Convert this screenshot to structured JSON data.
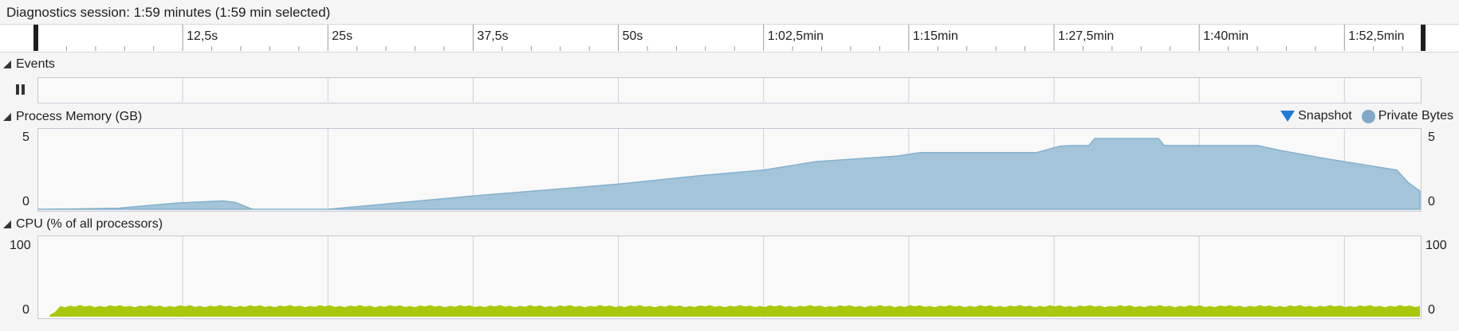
{
  "header": {
    "session_label": "Diagnostics session: 1:59 minutes (1:59 min selected)"
  },
  "ruler": {
    "ticks": [
      "12,5s",
      "25s",
      "37,5s",
      "50s",
      "1:02,5min",
      "1:15min",
      "1:27,5min",
      "1:40min",
      "1:52,5min"
    ]
  },
  "events": {
    "title": "Events"
  },
  "memory": {
    "title": "Process Memory (GB)",
    "y_max_label": "5",
    "y_min_label": "0",
    "legend": {
      "snapshot": "Snapshot",
      "private_bytes": "Private Bytes"
    },
    "colors": {
      "fill": "#a3c4d9",
      "stroke": "#86b1cc",
      "snapshot": "#1e7bd6"
    }
  },
  "cpu": {
    "title": "CPU (% of all processors)",
    "y_max_label": "100",
    "y_min_label": "0",
    "colors": {
      "fill": "#a9c80d"
    }
  },
  "chart_data": [
    {
      "type": "area",
      "title": "Process Memory (GB)",
      "x_unit": "seconds",
      "ylim": [
        0,
        5
      ],
      "series": [
        {
          "name": "Private Bytes",
          "x": [
            0,
            3,
            7,
            12,
            16,
            17,
            18.5,
            25,
            37.5,
            50,
            57,
            62.5,
            67,
            74,
            76,
            84,
            86,
            88,
            89,
            90.5,
            91,
            96.5,
            97,
            104,
            105,
            107,
            111,
            117,
            118,
            119
          ],
          "values": [
            0,
            0.02,
            0.08,
            0.45,
            0.6,
            0.5,
            0,
            0,
            0.95,
            1.8,
            2.4,
            2.8,
            3.4,
            3.8,
            4.05,
            4.05,
            4.05,
            4.5,
            4.55,
            4.55,
            5.05,
            5.05,
            4.55,
            4.55,
            4.55,
            4.2,
            3.6,
            2.8,
            1.9,
            1.3
          ]
        }
      ]
    },
    {
      "type": "area",
      "title": "CPU (% of all processors)",
      "x_unit": "seconds",
      "ylim": [
        0,
        100
      ],
      "series": [
        {
          "name": "CPU",
          "x": [
            0,
            1,
            2,
            119
          ],
          "values": [
            0,
            0,
            15,
            15
          ]
        }
      ]
    }
  ]
}
